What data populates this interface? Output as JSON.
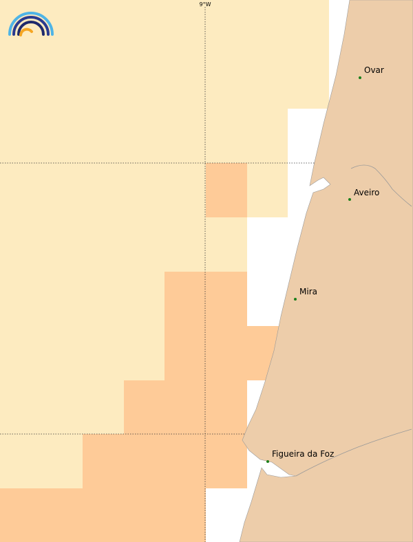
{
  "map": {
    "meridian_label": "9°W",
    "cities": [
      "Ovar",
      "Aveiro",
      "Mira",
      "Figueira da Foz"
    ]
  }
}
